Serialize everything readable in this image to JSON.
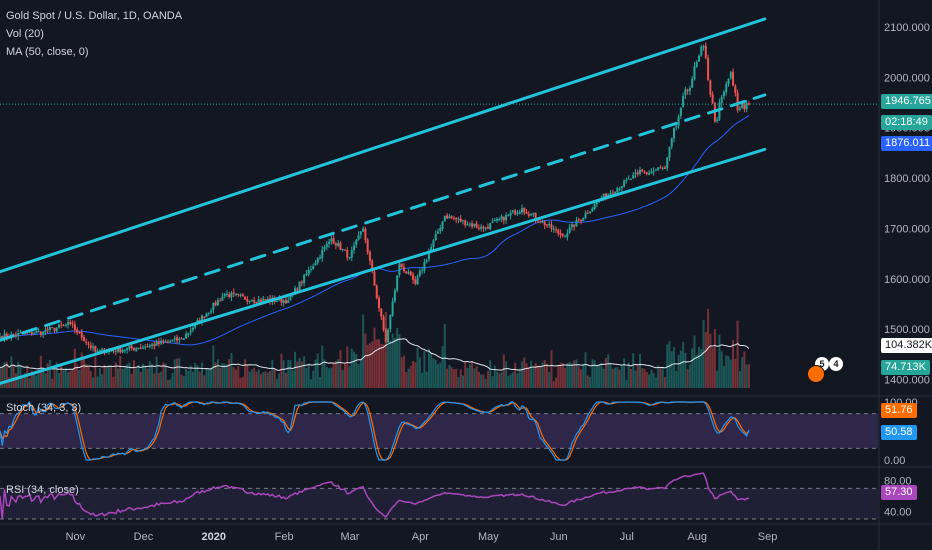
{
  "header": {
    "symbol_line": "Gold Spot / U.S. Dollar, 1D, OANDA",
    "vol_label": "Vol (20)",
    "ma_label": "MA (50, close, 0)",
    "stoch_label": "Stoch (34, 3, 3)",
    "rsi_label": "RSI (34, close)"
  },
  "badges": {
    "last_price": "1946.765",
    "countdown": "02:18:49",
    "ma_value": "1876.011",
    "vol_value": "104.382K",
    "vol_ma_value": "74.713K",
    "stoch_k": "51.76",
    "stoch_d": "50.58",
    "rsi_value": "57.30"
  },
  "events": {
    "count_a": "5",
    "count_b": "4"
  },
  "colors": {
    "background": "#131722",
    "up": "#26a69a",
    "down": "#ef5350",
    "channel": "#22c4dc",
    "ma": "#2962ff",
    "stoch_k": "#2196f3",
    "stoch_d": "#ff6d00",
    "rsi": "#ab47bc"
  },
  "chart_data": [
    {
      "type": "candlestick",
      "title": "Gold Spot / U.S. Dollar, 1D, OANDA",
      "x_ticks": [
        "Nov",
        "Dec",
        "2020",
        "Feb",
        "Mar",
        "Apr",
        "May",
        "Jun",
        "Jul",
        "Aug",
        "Sep"
      ],
      "y_ticks": [
        "2100.000",
        "2000.000",
        "1900.000",
        "1800.000",
        "1700.000",
        "1600.000",
        "1500.000",
        "1400.000"
      ],
      "ylim": [
        1395,
        2125
      ],
      "close_anchors": [
        [
          "2019-10-01",
          1485
        ],
        [
          "2019-10-20",
          1495
        ],
        [
          "2019-11-01",
          1510
        ],
        [
          "2019-11-12",
          1455
        ],
        [
          "2019-12-01",
          1463
        ],
        [
          "2019-12-20",
          1480
        ],
        [
          "2020-01-08",
          1570
        ],
        [
          "2020-01-20",
          1558
        ],
        [
          "2020-02-05",
          1557
        ],
        [
          "2020-02-24",
          1680
        ],
        [
          "2020-03-03",
          1643
        ],
        [
          "2020-03-09",
          1700
        ],
        [
          "2020-03-19",
          1475
        ],
        [
          "2020-03-25",
          1630
        ],
        [
          "2020-04-01",
          1590
        ],
        [
          "2020-04-14",
          1725
        ],
        [
          "2020-05-01",
          1700
        ],
        [
          "2020-05-18",
          1740
        ],
        [
          "2020-06-05",
          1685
        ],
        [
          "2020-06-22",
          1760
        ],
        [
          "2020-07-08",
          1808
        ],
        [
          "2020-07-20",
          1818
        ],
        [
          "2020-07-27",
          1940
        ],
        [
          "2020-08-06",
          2062
        ],
        [
          "2020-08-11",
          1912
        ],
        [
          "2020-08-18",
          2010
        ],
        [
          "2020-08-21",
          1935
        ],
        [
          "2020-08-26",
          1946.765
        ]
      ],
      "channel_lines": {
        "upper": [
          [
            "2019-10-01",
            1614
          ],
          [
            "2020-09-02",
            2116
          ]
        ],
        "mid_dashed": [
          [
            "2019-10-01",
            1478
          ],
          [
            "2020-09-02",
            1965
          ]
        ],
        "lower": [
          [
            "2019-10-01",
            1392
          ],
          [
            "2020-09-02",
            1857
          ]
        ]
      },
      "last_price": 1946.765,
      "ma_50_last": 1876.011
    },
    {
      "type": "bar",
      "title": "Vol (20)",
      "last_value": "104.382K",
      "ma_last": "74.713K",
      "relative_peaks": [
        [
          "2020-03-09",
          0.92
        ],
        [
          "2020-03-19",
          0.95
        ],
        [
          "2020-04-14",
          0.8
        ],
        [
          "2020-08-06",
          0.85
        ]
      ]
    },
    {
      "type": "line",
      "title": "Stoch (34, 3, 3)",
      "y_ticks": [
        "100.00",
        "0.00"
      ],
      "ylim": [
        0,
        100
      ],
      "bands": [
        80,
        20
      ],
      "k_last": 51.76,
      "d_last": 50.58
    },
    {
      "type": "line",
      "title": "RSI (34, close)",
      "y_ticks": [
        "80.00",
        "40.00"
      ],
      "ylim": [
        30,
        90
      ],
      "bands": [
        70,
        30
      ],
      "last": 57.3
    }
  ]
}
